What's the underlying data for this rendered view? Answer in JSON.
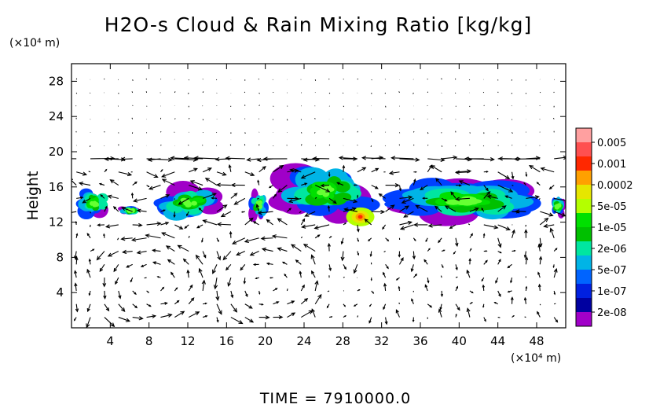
{
  "chart_data": {
    "type": "heatmap",
    "title": "H2O-s Cloud & Rain Mixing Ratio [kg/kg]",
    "x_unit": "(×10⁴ m)",
    "y_unit": "(×10⁴ m)",
    "ylabel": "Height",
    "xlabel": "",
    "xlim": [
      0,
      51
    ],
    "ylim": [
      0,
      30
    ],
    "x_ticks": [
      "4",
      "8",
      "12",
      "16",
      "20",
      "24",
      "28",
      "32",
      "36",
      "40",
      "44",
      "48"
    ],
    "y_ticks": [
      "4",
      "8",
      "12",
      "16",
      "20",
      "24",
      "28"
    ],
    "footer": "TIME = 7910000.0",
    "colorbar": {
      "labels": [
        "0.005",
        "0.001",
        "0.0002",
        "5e-05",
        "1e-05",
        "2e-06",
        "5e-07",
        "1e-07",
        "2e-08"
      ],
      "colors": [
        "#ffa0a0",
        "#ff5050",
        "#ff2800",
        "#ffa000",
        "#e6e600",
        "#b4ff00",
        "#00e000",
        "#00c000",
        "#00e6a0",
        "#00b4e6",
        "#0064ff",
        "#0020e0",
        "#0000a0",
        "#a000c8"
      ]
    },
    "cloud_regions": [
      {
        "x": [
          0.2,
          4.6
        ],
        "y": [
          12.2,
          16.2
        ]
      },
      {
        "x": [
          4.6,
          7.6
        ],
        "y": [
          12.8,
          13.8
        ]
      },
      {
        "x": [
          8.2,
          16.2
        ],
        "y": [
          11.8,
          16.6
        ]
      },
      {
        "x": [
          18.2,
          20.4
        ],
        "y": [
          12.2,
          15.8
        ]
      },
      {
        "x": [
          20.4,
          32.0
        ],
        "y": [
          12.0,
          19.0
        ]
      },
      {
        "x": [
          32.0,
          48.8
        ],
        "y": [
          11.8,
          17.2
        ]
      },
      {
        "x": [
          49.4,
          51.0
        ],
        "y": [
          12.4,
          15.2
        ]
      }
    ]
  }
}
